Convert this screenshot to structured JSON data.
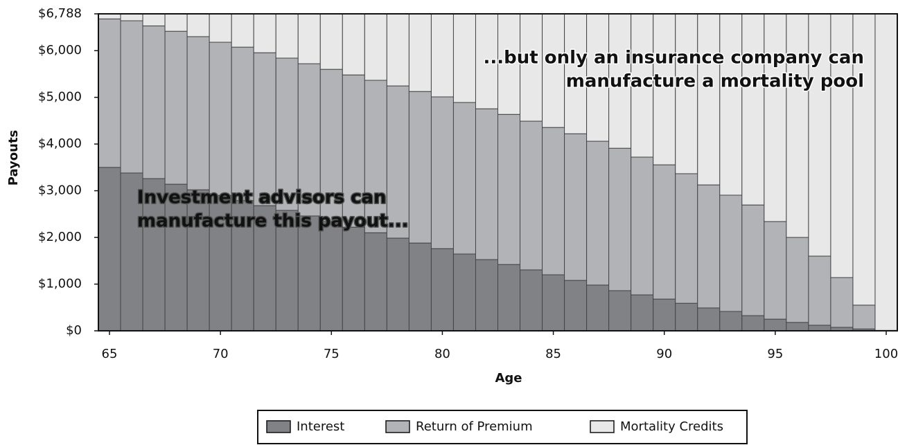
{
  "chart_data": {
    "type": "stacked_bar",
    "xlabel": "Age",
    "ylabel": "Payouts",
    "x": [
      65,
      66,
      67,
      68,
      69,
      70,
      71,
      72,
      73,
      74,
      75,
      76,
      77,
      78,
      79,
      80,
      81,
      82,
      83,
      84,
      85,
      86,
      87,
      88,
      89,
      90,
      91,
      92,
      93,
      94,
      95,
      96,
      97,
      98,
      99,
      100
    ],
    "series": [
      {
        "name": "Interest",
        "color": "#808285",
        "values": [
          3500,
          3380,
          3260,
          3140,
          3020,
          2900,
          2790,
          2680,
          2580,
          2460,
          2340,
          2220,
          2100,
          1985,
          1880,
          1760,
          1645,
          1525,
          1420,
          1305,
          1200,
          1080,
          980,
          860,
          770,
          680,
          590,
          490,
          415,
          325,
          250,
          180,
          120,
          75,
          40,
          10
        ]
      },
      {
        "name": "Return of Premium",
        "color": "#b1b3b6",
        "values": [
          3180,
          3260,
          3270,
          3275,
          3280,
          3280,
          3285,
          3275,
          3260,
          3260,
          3260,
          3260,
          3265,
          3260,
          3245,
          3250,
          3245,
          3230,
          3215,
          3185,
          3155,
          3140,
          3080,
          3050,
          2950,
          2875,
          2775,
          2635,
          2490,
          2370,
          2090,
          1820,
          1480,
          1065,
          510,
          0
        ]
      },
      {
        "name": "Mortality Credits",
        "color": "#e8e8e8",
        "values": [
          108,
          148,
          258,
          373,
          488,
          608,
          713,
          833,
          948,
          1068,
          1188,
          1308,
          1423,
          1543,
          1663,
          1778,
          1898,
          2033,
          2153,
          2298,
          2433,
          2568,
          2728,
          2878,
          3068,
          3233,
          3423,
          3663,
          3883,
          4093,
          4448,
          4788,
          5188,
          5648,
          6238,
          6778
        ]
      }
    ],
    "xlim": [
      64.5,
      100.5
    ],
    "xticks": [
      65,
      70,
      75,
      80,
      85,
      90,
      95,
      100
    ],
    "ylim": [
      0,
      6788
    ],
    "yticks": [
      {
        "value": 0,
        "label": "$0"
      },
      {
        "value": 1000,
        "label": "$1,000"
      },
      {
        "value": 2000,
        "label": "$2,000"
      },
      {
        "value": 3000,
        "label": "$3,000"
      },
      {
        "value": 4000,
        "label": "$4,000"
      },
      {
        "value": 5000,
        "label": "$5,000"
      },
      {
        "value": 6000,
        "label": "$6,000"
      },
      {
        "value": 6788,
        "label": "$6,788"
      }
    ],
    "annotations": [
      {
        "lines": [
          "Investment advisors can",
          "manufacture this payout..."
        ]
      },
      {
        "lines": [
          "...but only an insurance company can",
          "manufacture a mortality pool"
        ]
      }
    ],
    "legend": "bottom"
  }
}
